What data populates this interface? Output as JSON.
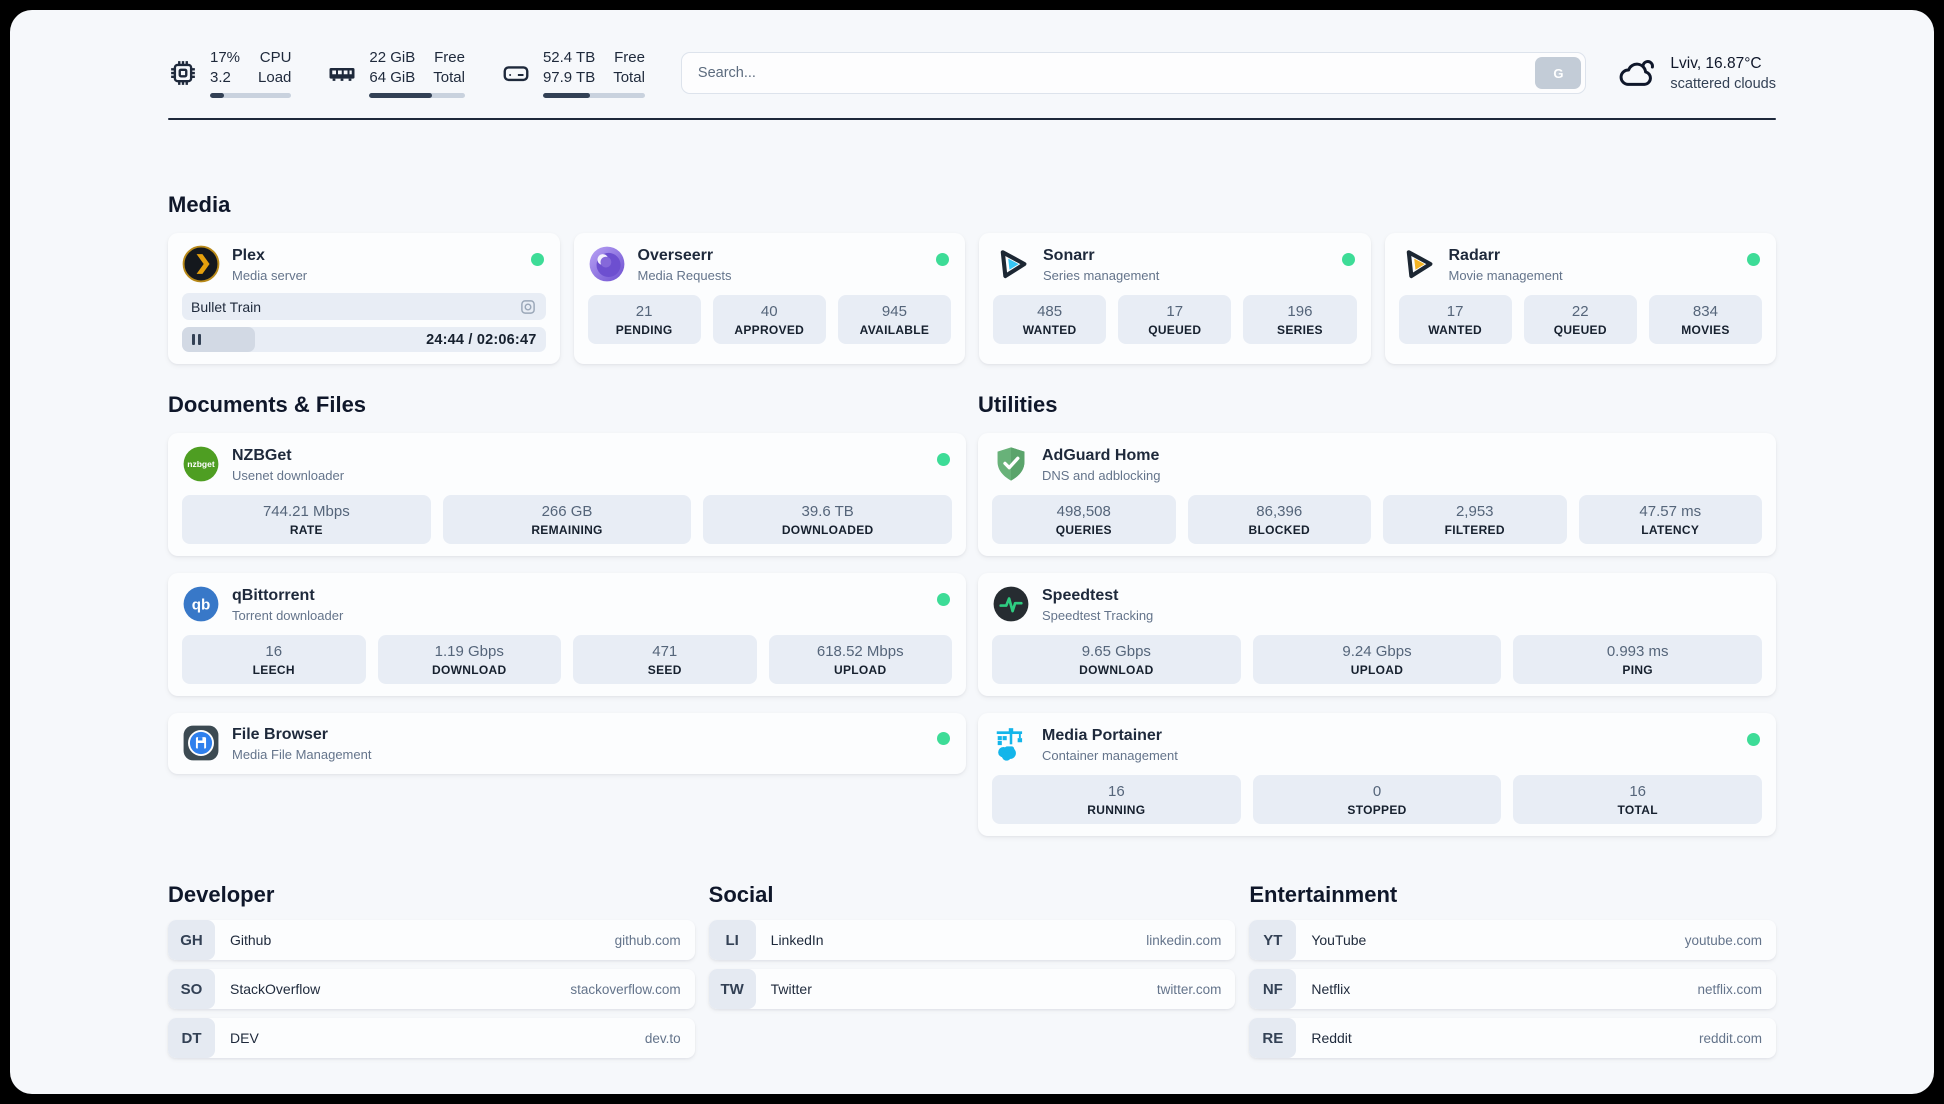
{
  "colors": {
    "status_online": "#3ddc97",
    "bar_fill": "#334155",
    "accent_plex": "#e5a00d"
  },
  "topbar": {
    "resources": [
      {
        "icon": "cpu-icon",
        "values": [
          "17%",
          "3.2"
        ],
        "labels": [
          "CPU",
          "Load"
        ],
        "bar_pct": 17
      },
      {
        "icon": "memory-icon",
        "values": [
          "22 GiB",
          "64 GiB"
        ],
        "labels": [
          "Free",
          "Total"
        ],
        "bar_pct": 66
      },
      {
        "icon": "disk-icon",
        "values": [
          "52.4 TB",
          "97.9 TB"
        ],
        "labels": [
          "Free",
          "Total"
        ],
        "bar_pct": 46
      }
    ],
    "search": {
      "placeholder": "Search...",
      "button_label": "G"
    },
    "weather": {
      "icon": "scattered-clouds-icon",
      "location_temp": "Lviv, 16.87°C",
      "condition": "scattered clouds"
    }
  },
  "sections": {
    "media": {
      "heading": "Media",
      "plex": {
        "title": "Plex",
        "subtitle": "Media server",
        "status": "online",
        "now_playing": "Bullet Train",
        "time": "24:44 / 02:06:47",
        "progress_pct": 20
      },
      "overseerr": {
        "title": "Overseerr",
        "subtitle": "Media Requests",
        "status": "online",
        "stats": [
          {
            "value": "21",
            "label": "PENDING"
          },
          {
            "value": "40",
            "label": "APPROVED"
          },
          {
            "value": "945",
            "label": "AVAILABLE"
          }
        ]
      },
      "sonarr": {
        "title": "Sonarr",
        "subtitle": "Series management",
        "status": "online",
        "stats": [
          {
            "value": "485",
            "label": "WANTED"
          },
          {
            "value": "17",
            "label": "QUEUED"
          },
          {
            "value": "196",
            "label": "SERIES"
          }
        ]
      },
      "radarr": {
        "title": "Radarr",
        "subtitle": "Movie management",
        "status": "online",
        "stats": [
          {
            "value": "17",
            "label": "WANTED"
          },
          {
            "value": "22",
            "label": "QUEUED"
          },
          {
            "value": "834",
            "label": "MOVIES"
          }
        ]
      }
    },
    "documents": {
      "heading": "Documents & Files",
      "nzbget": {
        "title": "NZBGet",
        "subtitle": "Usenet downloader",
        "status": "online",
        "stats": [
          {
            "value": "744.21 Mbps",
            "label": "RATE"
          },
          {
            "value": "266 GB",
            "label": "REMAINING"
          },
          {
            "value": "39.6 TB",
            "label": "DOWNLOADED"
          }
        ]
      },
      "qbittorrent": {
        "title": "qBittorrent",
        "subtitle": "Torrent downloader",
        "status": "online",
        "stats": [
          {
            "value": "16",
            "label": "LEECH"
          },
          {
            "value": "1.19 Gbps",
            "label": "DOWNLOAD"
          },
          {
            "value": "471",
            "label": "SEED"
          },
          {
            "value": "618.52 Mbps",
            "label": "UPLOAD"
          }
        ]
      },
      "filebrowser": {
        "title": "File Browser",
        "subtitle": "Media File Management",
        "status": "online"
      }
    },
    "utilities": {
      "heading": "Utilities",
      "adguard": {
        "title": "AdGuard Home",
        "subtitle": "DNS and adblocking",
        "stats": [
          {
            "value": "498,508",
            "label": "QUERIES"
          },
          {
            "value": "86,396",
            "label": "BLOCKED"
          },
          {
            "value": "2,953",
            "label": "FILTERED"
          },
          {
            "value": "47.57 ms",
            "label": "LATENCY"
          }
        ]
      },
      "speedtest": {
        "title": "Speedtest",
        "subtitle": "Speedtest Tracking",
        "stats": [
          {
            "value": "9.65 Gbps",
            "label": "DOWNLOAD"
          },
          {
            "value": "9.24 Gbps",
            "label": "UPLOAD"
          },
          {
            "value": "0.993 ms",
            "label": "PING"
          }
        ]
      },
      "portainer": {
        "title": "Media Portainer",
        "subtitle": "Container management",
        "status": "online",
        "stats": [
          {
            "value": "16",
            "label": "RUNNING"
          },
          {
            "value": "0",
            "label": "STOPPED"
          },
          {
            "value": "16",
            "label": "TOTAL"
          }
        ]
      }
    },
    "links": {
      "developer": {
        "heading": "Developer",
        "items": [
          {
            "abbr": "GH",
            "name": "Github",
            "domain": "github.com"
          },
          {
            "abbr": "SO",
            "name": "StackOverflow",
            "domain": "stackoverflow.com"
          },
          {
            "abbr": "DT",
            "name": "DEV",
            "domain": "dev.to"
          }
        ]
      },
      "social": {
        "heading": "Social",
        "items": [
          {
            "abbr": "LI",
            "name": "LinkedIn",
            "domain": "linkedin.com"
          },
          {
            "abbr": "TW",
            "name": "Twitter",
            "domain": "twitter.com"
          }
        ]
      },
      "entertainment": {
        "heading": "Entertainment",
        "items": [
          {
            "abbr": "YT",
            "name": "YouTube",
            "domain": "youtube.com"
          },
          {
            "abbr": "NF",
            "name": "Netflix",
            "domain": "netflix.com"
          },
          {
            "abbr": "RE",
            "name": "Reddit",
            "domain": "reddit.com"
          }
        ]
      }
    }
  }
}
